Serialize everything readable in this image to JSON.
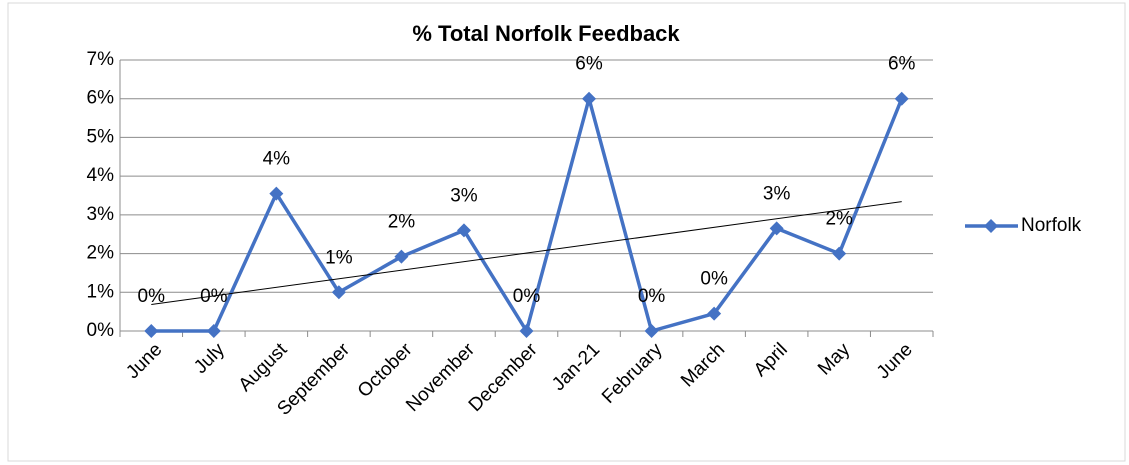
{
  "chart_data": {
    "type": "line",
    "title": "% Total Norfolk Feedback",
    "categories": [
      "June",
      "July",
      "August",
      "September",
      "October",
      "November",
      "December",
      "Jan-21",
      "February",
      "March",
      "April",
      "May",
      "June"
    ],
    "series": [
      {
        "name": "Norfolk",
        "color": "#4472c4",
        "values": [
          0,
          0,
          3.55,
          1.0,
          1.92,
          2.6,
          0,
          6.0,
          0,
          0.45,
          2.65,
          2.0,
          6.0
        ],
        "value_labels": [
          "0%",
          "0%",
          "4%",
          "1%",
          "2%",
          "3%",
          "0%",
          "6%",
          "0%",
          "0%",
          "3%",
          "2%",
          "6%"
        ]
      }
    ],
    "ylim": [
      0,
      7
    ],
    "yticks": [
      {
        "value": 0,
        "label": "0%"
      },
      {
        "value": 1,
        "label": "1%"
      },
      {
        "value": 2,
        "label": "2%"
      },
      {
        "value": 3,
        "label": "3%"
      },
      {
        "value": 4,
        "label": "4%"
      },
      {
        "value": 5,
        "label": "5%"
      },
      {
        "value": 6,
        "label": "6%"
      },
      {
        "value": 7,
        "label": "7%"
      }
    ],
    "grid": true,
    "trendline": "linear",
    "legend": "right"
  }
}
